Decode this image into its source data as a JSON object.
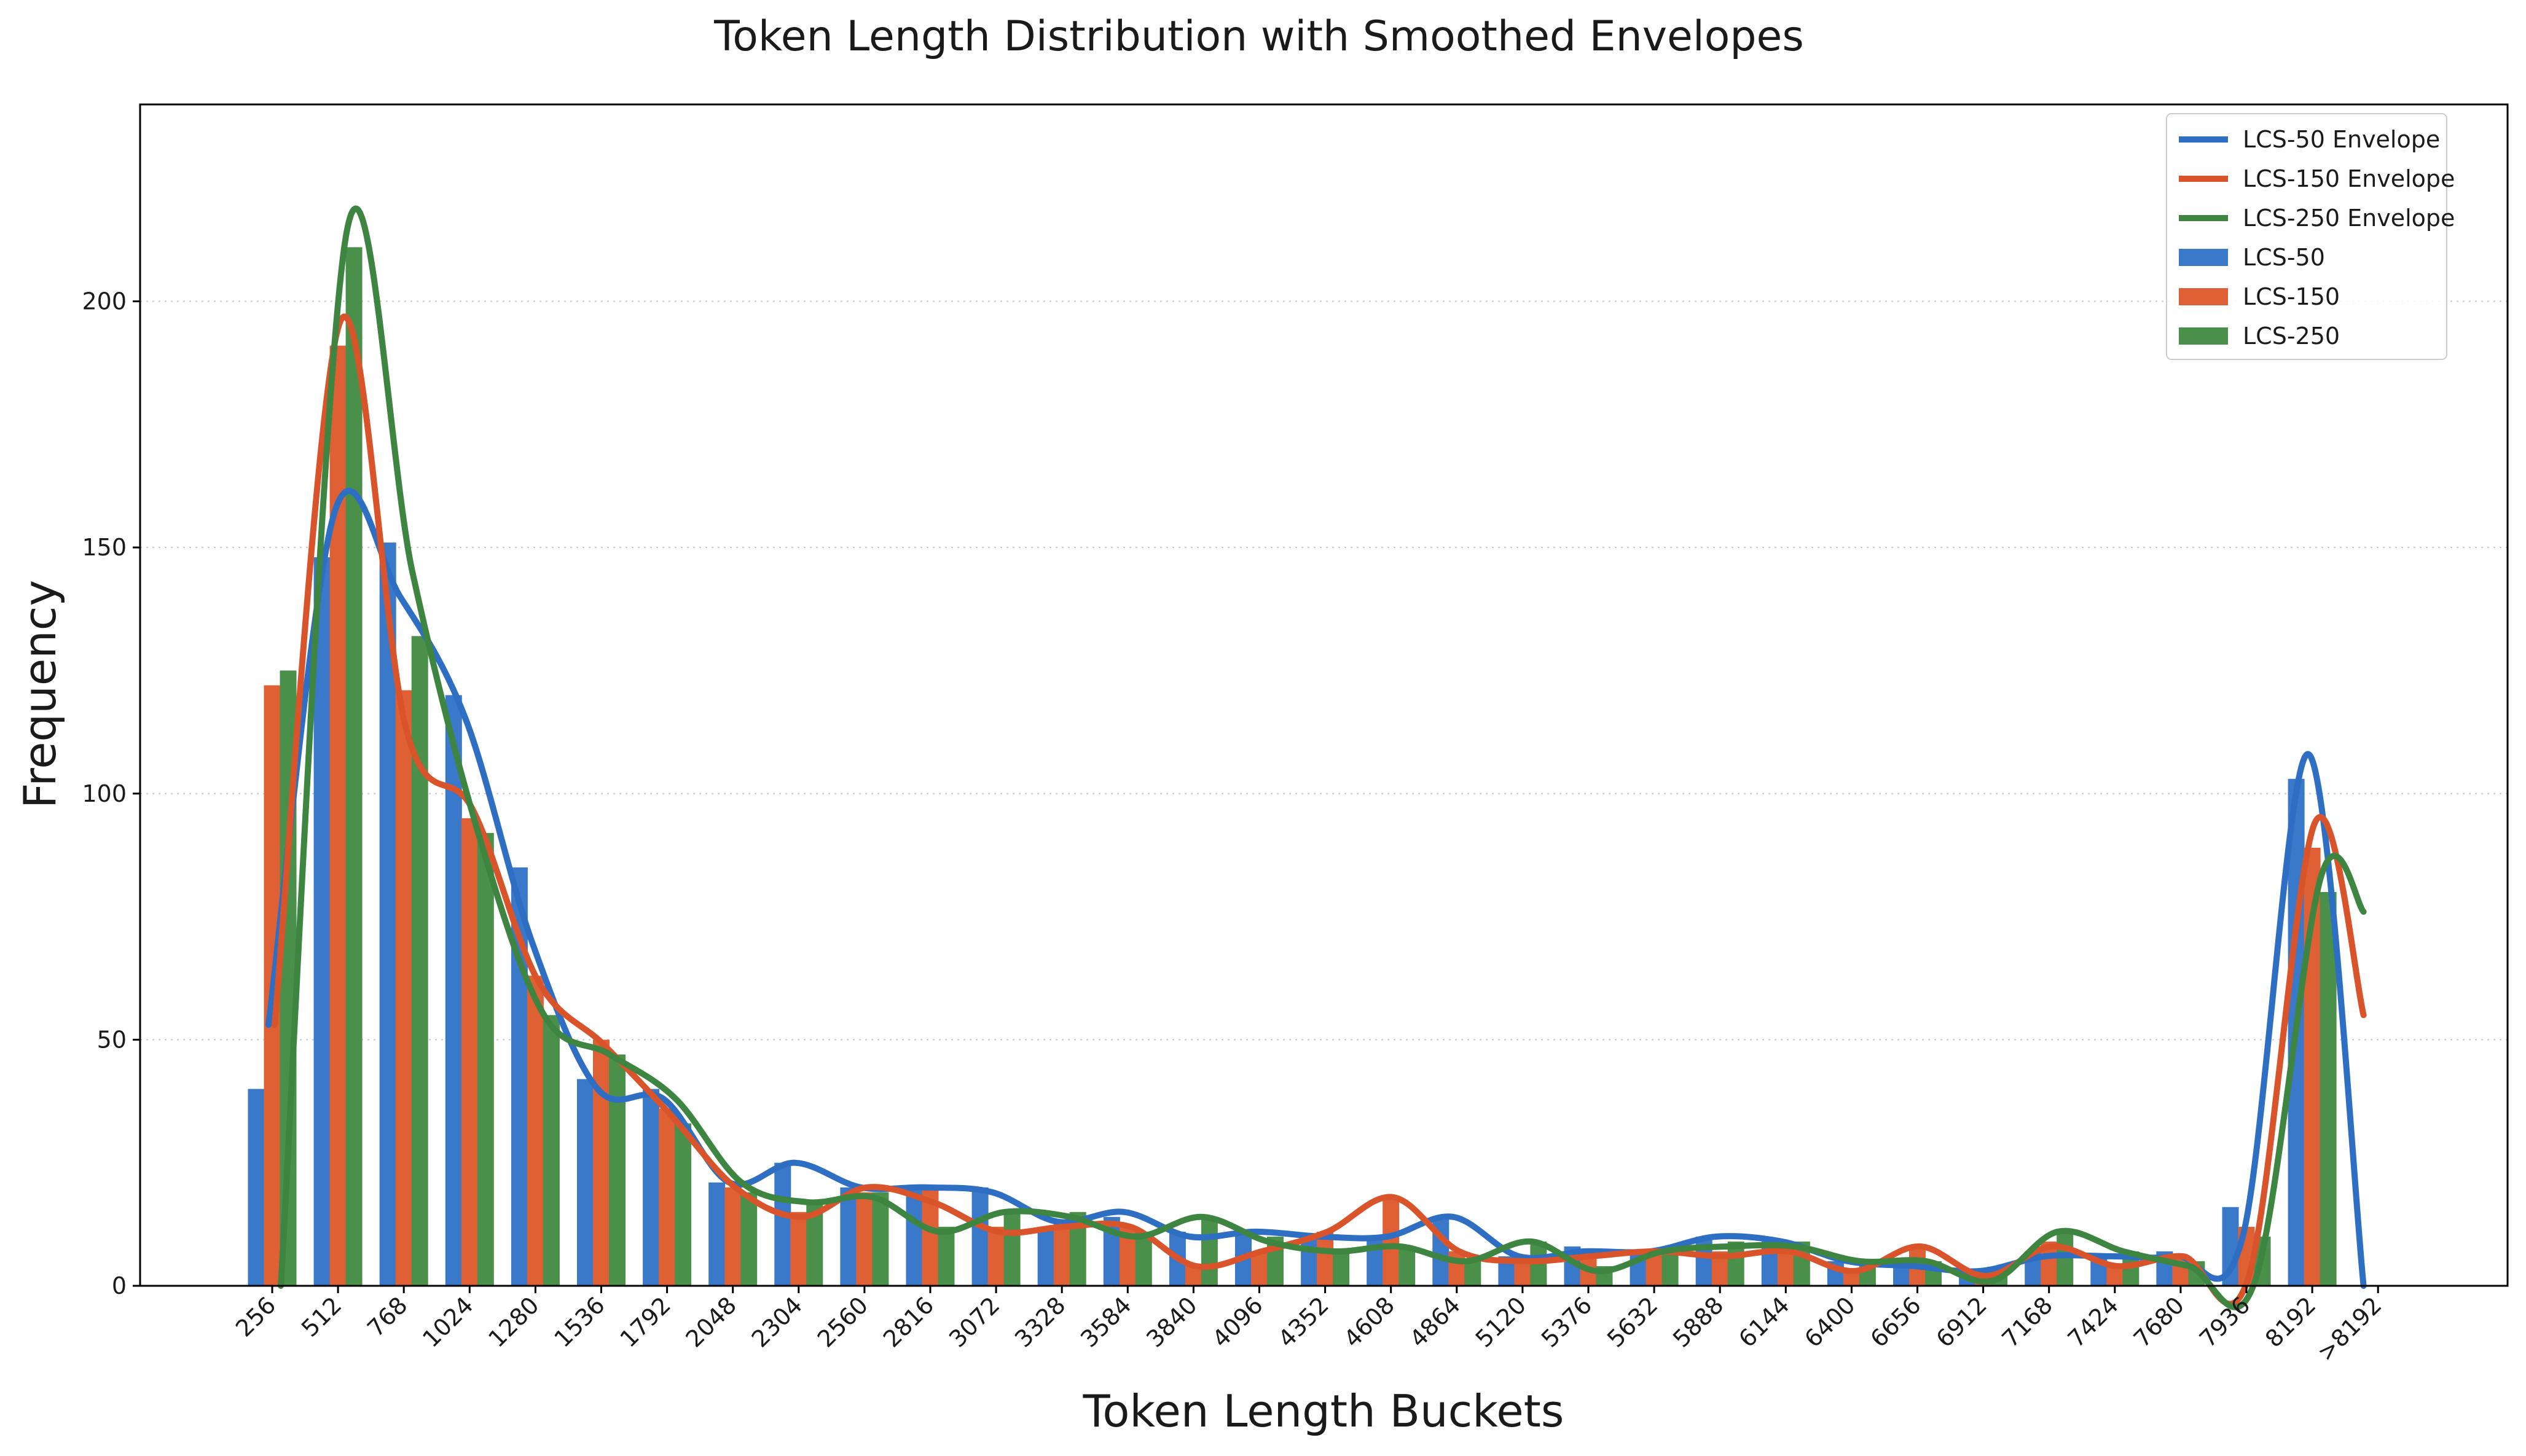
{
  "chart_data": {
    "type": "bar",
    "title": "Token Length Distribution with Smoothed Envelopes",
    "xlabel": "Token Length Buckets",
    "ylabel": "Frequency",
    "ylim": [
      0,
      240
    ],
    "yticks": [
      0,
      50,
      100,
      150,
      200
    ],
    "grid": "y-dotted",
    "legend_position": "top-right",
    "categories": [
      "256",
      "512",
      "768",
      "1024",
      "1280",
      "1536",
      "1792",
      "2048",
      "2304",
      "2560",
      "2816",
      "3072",
      "3328",
      "3584",
      "3840",
      "4096",
      "4352",
      "4608",
      "4864",
      "5120",
      "5376",
      "5632",
      "5888",
      "6144",
      "6400",
      "6656",
      "6912",
      "7168",
      "7424",
      "7680",
      "7936",
      "8192",
      ">8192"
    ],
    "series": [
      {
        "name": "LCS-50",
        "color": "#3a78c9",
        "values": [
          40,
          148,
          151,
          120,
          85,
          42,
          40,
          21,
          25,
          20,
          20,
          20,
          12,
          14,
          11,
          11,
          10,
          10,
          14,
          6,
          8,
          7,
          10,
          9,
          5,
          4,
          3,
          7,
          6,
          7,
          16,
          103,
          0
        ]
      },
      {
        "name": "LCS-150",
        "color": "#e06035",
        "values": [
          122,
          191,
          121,
          95,
          63,
          50,
          36,
          20,
          15,
          19,
          20,
          12,
          13,
          12,
          4,
          7,
          11,
          18,
          7,
          6,
          6,
          7,
          7,
          8,
          3,
          8,
          3,
          9,
          4,
          6,
          12,
          89,
          0
        ]
      },
      {
        "name": "LCS-250",
        "color": "#4a8f4a",
        "values": [
          125,
          211,
          132,
          92,
          55,
          47,
          33,
          19,
          17,
          19,
          12,
          15,
          15,
          11,
          14,
          10,
          7,
          8,
          5,
          9,
          4,
          8,
          9,
          9,
          5,
          5,
          2,
          11,
          7,
          5,
          10,
          80,
          0
        ]
      }
    ],
    "envelopes": [
      {
        "name": "LCS-50 Envelope",
        "color": "#2e6fc4",
        "values": [
          53,
          157,
          140,
          115,
          70,
          40,
          38,
          21,
          25,
          20,
          20,
          19,
          13,
          15,
          10,
          11,
          10,
          10,
          14,
          6,
          7,
          7,
          10,
          9,
          5,
          4,
          3,
          6,
          6,
          6,
          10,
          108,
          0
        ]
      },
      {
        "name": "LCS-150 Envelope",
        "color": "#d9542b",
        "values": [
          53,
          196,
          113,
          97,
          62,
          49,
          35,
          20,
          14,
          20,
          17,
          11,
          12,
          12,
          4,
          7,
          11,
          18,
          7,
          5,
          6,
          7,
          6,
          7,
          3,
          8,
          2,
          8,
          4,
          6,
          2,
          94,
          55
        ]
      },
      {
        "name": "LCS-250 Envelope",
        "color": "#3d8540",
        "values": [
          0,
          214,
          145,
          92,
          55,
          47,
          38,
          21,
          17,
          18,
          11,
          15,
          14,
          10,
          14,
          9,
          7,
          8,
          5,
          9,
          3,
          7,
          8,
          8,
          5,
          5,
          1,
          11,
          7,
          4,
          1,
          83,
          76
        ]
      }
    ]
  }
}
